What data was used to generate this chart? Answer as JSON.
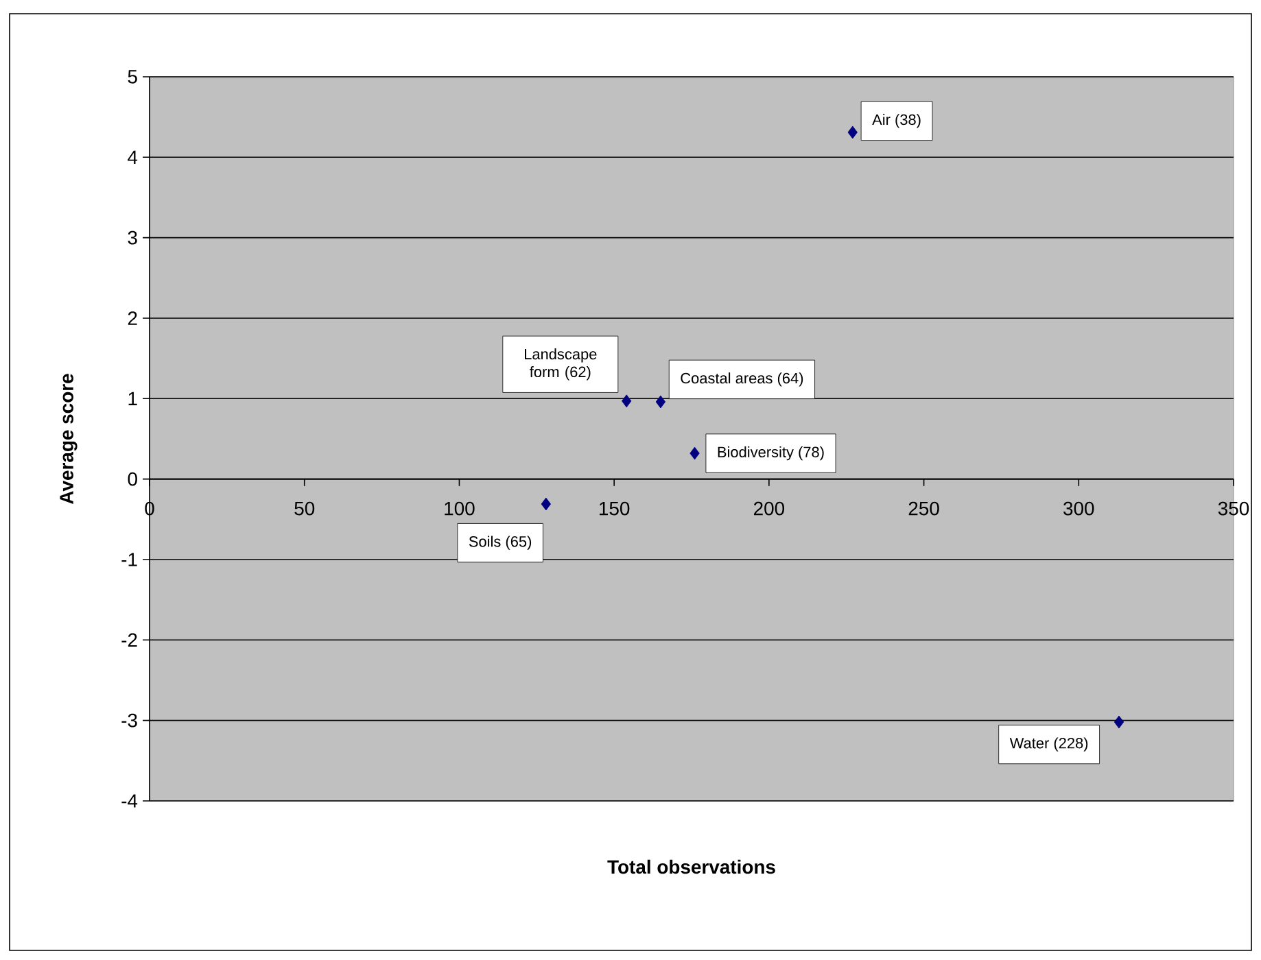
{
  "chart_data": {
    "type": "scatter",
    "xlabel": "Total observations",
    "ylabel": "Average score",
    "x": [
      227,
      154,
      165,
      176,
      128,
      313
    ],
    "values": [
      4.31,
      0.97,
      0.96,
      0.32,
      -0.31,
      -3.02
    ],
    "color": "#000080",
    "marker": "diamond",
    "grid": "y",
    "xlim": [
      0,
      350
    ],
    "xticks": [
      0,
      50,
      100,
      150,
      200,
      250,
      300,
      350
    ],
    "ylim": [
      -4,
      5
    ],
    "yticks": [
      -4,
      -3,
      -2,
      -1,
      0,
      1,
      2,
      3,
      4,
      5
    ],
    "annotations": [
      {
        "text": "Air (38)",
        "x": 227,
        "y": 4.31
      },
      {
        "text": "Landscape form (62)",
        "x": 154,
        "y": 0.97
      },
      {
        "text": "Coastal areas (64)",
        "x": 165,
        "y": 0.96
      },
      {
        "text": "Biodiversity (78)",
        "x": 176,
        "y": 0.32
      },
      {
        "text": "Soils (65)",
        "x": 128,
        "y": -0.31
      },
      {
        "text": "Water (228)",
        "x": 313,
        "y": -3.02
      }
    ]
  }
}
